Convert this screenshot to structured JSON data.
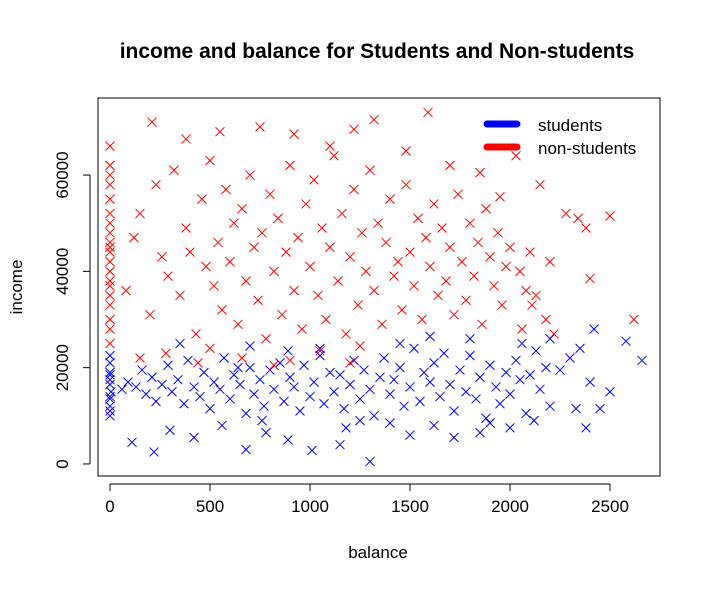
{
  "chart_data": {
    "type": "scatter",
    "title": "income and balance for Students and Non-students",
    "xlabel": "balance",
    "ylabel": "income",
    "xlim": [
      -60,
      2750
    ],
    "ylim": [
      -2500,
      76000
    ],
    "x_ticks": [
      0,
      500,
      1000,
      1500,
      2000,
      2500
    ],
    "y_ticks": [
      0,
      20000,
      40000,
      60000
    ],
    "x_tick_labels": [
      "0",
      "500",
      "1000",
      "1500",
      "2000",
      "2500"
    ],
    "y_tick_labels": [
      "0",
      "20000",
      "40000",
      "60000"
    ],
    "marker": "x",
    "legend_position": "top-right",
    "series": [
      {
        "name": "students",
        "color": "#0000ff",
        "points": [
          [
            0,
            14000
          ],
          [
            0,
            16500
          ],
          [
            0,
            19000
          ],
          [
            0,
            12000
          ],
          [
            0,
            21000
          ],
          [
            0,
            11000
          ],
          [
            0,
            17500
          ],
          [
            5,
            15000
          ],
          [
            0,
            22500
          ],
          [
            0,
            13500
          ],
          [
            0,
            10000
          ],
          [
            0,
            18500
          ],
          [
            60,
            15500
          ],
          [
            90,
            17000
          ],
          [
            130,
            16000
          ],
          [
            160,
            19500
          ],
          [
            180,
            14500
          ],
          [
            210,
            18000
          ],
          [
            230,
            13000
          ],
          [
            260,
            16500
          ],
          [
            290,
            20500
          ],
          [
            310,
            15000
          ],
          [
            340,
            17500
          ],
          [
            370,
            12500
          ],
          [
            390,
            21500
          ],
          [
            420,
            16000
          ],
          [
            450,
            14000
          ],
          [
            470,
            19000
          ],
          [
            500,
            11500
          ],
          [
            520,
            17000
          ],
          [
            550,
            15500
          ],
          [
            570,
            22000
          ],
          [
            600,
            13500
          ],
          [
            620,
            18500
          ],
          [
            650,
            16500
          ],
          [
            680,
            10500
          ],
          [
            700,
            20000
          ],
          [
            720,
            14500
          ],
          [
            750,
            17500
          ],
          [
            770,
            12000
          ],
          [
            800,
            19500
          ],
          [
            820,
            15500
          ],
          [
            850,
            21000
          ],
          [
            870,
            13000
          ],
          [
            900,
            18000
          ],
          [
            920,
            16000
          ],
          [
            950,
            11000
          ],
          [
            970,
            20500
          ],
          [
            1000,
            14000
          ],
          [
            1020,
            17000
          ],
          [
            1050,
            22500
          ],
          [
            1070,
            12500
          ],
          [
            1100,
            19000
          ],
          [
            1120,
            15000
          ],
          [
            1150,
            18500
          ],
          [
            1170,
            11500
          ],
          [
            1200,
            16500
          ],
          [
            1220,
            21500
          ],
          [
            1250,
            13500
          ],
          [
            1270,
            19500
          ],
          [
            1300,
            15500
          ],
          [
            1320,
            10000
          ],
          [
            1350,
            18000
          ],
          [
            1370,
            22000
          ],
          [
            1400,
            14500
          ],
          [
            1420,
            17500
          ],
          [
            1450,
            20000
          ],
          [
            1470,
            12000
          ],
          [
            1500,
            16000
          ],
          [
            1520,
            24000
          ],
          [
            1550,
            13000
          ],
          [
            1570,
            19000
          ],
          [
            1600,
            17000
          ],
          [
            1620,
            21000
          ],
          [
            1650,
            14000
          ],
          [
            1670,
            23000
          ],
          [
            1700,
            16500
          ],
          [
            1720,
            11000
          ],
          [
            1750,
            19500
          ],
          [
            1780,
            15000
          ],
          [
            1800,
            22500
          ],
          [
            1830,
            13500
          ],
          [
            1850,
            18000
          ],
          [
            1880,
            9500
          ],
          [
            1900,
            20500
          ],
          [
            1930,
            16000
          ],
          [
            1950,
            12500
          ],
          [
            1980,
            19000
          ],
          [
            2000,
            14500
          ],
          [
            2030,
            21500
          ],
          [
            2050,
            17500
          ],
          [
            2080,
            10500
          ],
          [
            2100,
            18500
          ],
          [
            2130,
            23500
          ],
          [
            2150,
            15500
          ],
          [
            2180,
            20000
          ],
          [
            2200,
            12000
          ],
          [
            2250,
            19500
          ],
          [
            2300,
            22000
          ],
          [
            2330,
            11500
          ],
          [
            2350,
            24000
          ],
          [
            2380,
            7500
          ],
          [
            2400,
            17000
          ],
          [
            2420,
            28000
          ],
          [
            2450,
            11500
          ],
          [
            2500,
            15000
          ],
          [
            2580,
            25500
          ],
          [
            2660,
            21500
          ],
          [
            2200,
            26000
          ],
          [
            2060,
            25000
          ],
          [
            1300,
            500
          ],
          [
            220,
            2500
          ],
          [
            110,
            4500
          ],
          [
            680,
            3000
          ],
          [
            1010,
            2800
          ],
          [
            890,
            5000
          ],
          [
            300,
            7000
          ],
          [
            1150,
            4000
          ],
          [
            1500,
            6000
          ],
          [
            1720,
            5500
          ],
          [
            1850,
            6500
          ],
          [
            2000,
            7500
          ],
          [
            2120,
            9000
          ],
          [
            1620,
            8000
          ],
          [
            1400,
            8500
          ],
          [
            560,
            8000
          ],
          [
            780,
            6500
          ],
          [
            420,
            5500
          ],
          [
            1250,
            9000
          ],
          [
            1600,
            26500
          ],
          [
            1800,
            26000
          ],
          [
            1050,
            24000
          ],
          [
            1450,
            25000
          ],
          [
            890,
            23500
          ],
          [
            700,
            24500
          ],
          [
            350,
            25000
          ],
          [
            640,
            20000
          ],
          [
            760,
            9000
          ],
          [
            1180,
            7500
          ],
          [
            1900,
            8500
          ]
        ]
      },
      {
        "name": "non-students",
        "color": "#ff0000",
        "points": [
          [
            0,
            40000
          ],
          [
            0,
            45000
          ],
          [
            0,
            35000
          ],
          [
            0,
            50000
          ],
          [
            0,
            30000
          ],
          [
            0,
            55000
          ],
          [
            0,
            38000
          ],
          [
            0,
            42000
          ],
          [
            0,
            48000
          ],
          [
            0,
            33000
          ],
          [
            0,
            60000
          ],
          [
            0,
            62000
          ],
          [
            0,
            28000
          ],
          [
            0,
            25000
          ],
          [
            0,
            52000
          ],
          [
            0,
            44000
          ],
          [
            0,
            37000
          ],
          [
            0,
            58000
          ],
          [
            0,
            66000
          ],
          [
            0,
            46000
          ],
          [
            80,
            36000
          ],
          [
            120,
            47000
          ],
          [
            150,
            52000
          ],
          [
            200,
            31000
          ],
          [
            230,
            58000
          ],
          [
            260,
            43000
          ],
          [
            290,
            39000
          ],
          [
            320,
            61000
          ],
          [
            350,
            35000
          ],
          [
            380,
            49000
          ],
          [
            400,
            44000
          ],
          [
            430,
            27000
          ],
          [
            460,
            55000
          ],
          [
            480,
            41000
          ],
          [
            500,
            63000
          ],
          [
            520,
            37000
          ],
          [
            540,
            46000
          ],
          [
            560,
            32000
          ],
          [
            580,
            57000
          ],
          [
            600,
            42000
          ],
          [
            620,
            50000
          ],
          [
            640,
            29000
          ],
          [
            660,
            53000
          ],
          [
            680,
            38000
          ],
          [
            700,
            60000
          ],
          [
            720,
            45000
          ],
          [
            740,
            34000
          ],
          [
            760,
            48000
          ],
          [
            780,
            26000
          ],
          [
            800,
            56000
          ],
          [
            820,
            40000
          ],
          [
            840,
            51000
          ],
          [
            860,
            31000
          ],
          [
            880,
            44000
          ],
          [
            900,
            62000
          ],
          [
            920,
            36000
          ],
          [
            940,
            47000
          ],
          [
            960,
            28000
          ],
          [
            980,
            54000
          ],
          [
            1000,
            41000
          ],
          [
            1020,
            59000
          ],
          [
            1040,
            35000
          ],
          [
            1060,
            49000
          ],
          [
            1080,
            30000
          ],
          [
            1100,
            45000
          ],
          [
            1120,
            64000
          ],
          [
            1140,
            38000
          ],
          [
            1160,
            52000
          ],
          [
            1180,
            27000
          ],
          [
            1200,
            43000
          ],
          [
            1220,
            57000
          ],
          [
            1240,
            33000
          ],
          [
            1260,
            48000
          ],
          [
            1280,
            40000
          ],
          [
            1300,
            61000
          ],
          [
            1320,
            36000
          ],
          [
            1340,
            50000
          ],
          [
            1360,
            29000
          ],
          [
            1380,
            46000
          ],
          [
            1400,
            55000
          ],
          [
            1420,
            39000
          ],
          [
            1440,
            42000
          ],
          [
            1460,
            32000
          ],
          [
            1480,
            58000
          ],
          [
            1500,
            44000
          ],
          [
            1520,
            37000
          ],
          [
            1540,
            51000
          ],
          [
            1560,
            30000
          ],
          [
            1580,
            47000
          ],
          [
            1600,
            41000
          ],
          [
            1620,
            54000
          ],
          [
            1640,
            35000
          ],
          [
            1660,
            49000
          ],
          [
            1680,
            38000
          ],
          [
            1700,
            45000
          ],
          [
            1720,
            31000
          ],
          [
            1740,
            56000
          ],
          [
            1760,
            42000
          ],
          [
            1780,
            34000
          ],
          [
            1800,
            50000
          ],
          [
            1820,
            39000
          ],
          [
            1840,
            46000
          ],
          [
            1860,
            29000
          ],
          [
            1880,
            53000
          ],
          [
            1900,
            43000
          ],
          [
            1920,
            37000
          ],
          [
            1940,
            48000
          ],
          [
            1960,
            33000
          ],
          [
            1980,
            41000
          ],
          [
            2000,
            45000
          ],
          [
            2050,
            40000
          ],
          [
            2080,
            36000
          ],
          [
            2100,
            44000
          ],
          [
            2130,
            35000
          ],
          [
            2150,
            58000
          ],
          [
            2180,
            30000
          ],
          [
            2200,
            42000
          ],
          [
            2220,
            27000
          ],
          [
            2280,
            52000
          ],
          [
            2340,
            51000
          ],
          [
            2400,
            38500
          ],
          [
            2500,
            51500
          ],
          [
            2620,
            30000
          ],
          [
            2380,
            49000
          ],
          [
            2060,
            28000
          ],
          [
            210,
            71000
          ],
          [
            1320,
            71500
          ],
          [
            1590,
            73000
          ],
          [
            1220,
            69500
          ],
          [
            550,
            69000
          ],
          [
            920,
            68500
          ],
          [
            380,
            67500
          ],
          [
            1100,
            66000
          ],
          [
            750,
            70000
          ],
          [
            1480,
            65000
          ],
          [
            1700,
            62000
          ],
          [
            1850,
            60500
          ],
          [
            2030,
            64000
          ],
          [
            1950,
            55500
          ],
          [
            2110,
            33000
          ],
          [
            280,
            23000
          ],
          [
            500,
            24000
          ],
          [
            660,
            22000
          ],
          [
            900,
            21500
          ],
          [
            1050,
            23500
          ],
          [
            1250,
            24500
          ],
          [
            440,
            21000
          ],
          [
            820,
            20500
          ],
          [
            150,
            22000
          ],
          [
            1200,
            21000
          ]
        ]
      }
    ]
  },
  "legend": {
    "items": [
      {
        "label": "students",
        "color": "#0000ff"
      },
      {
        "label": "non-students",
        "color": "#ff0000"
      }
    ]
  }
}
